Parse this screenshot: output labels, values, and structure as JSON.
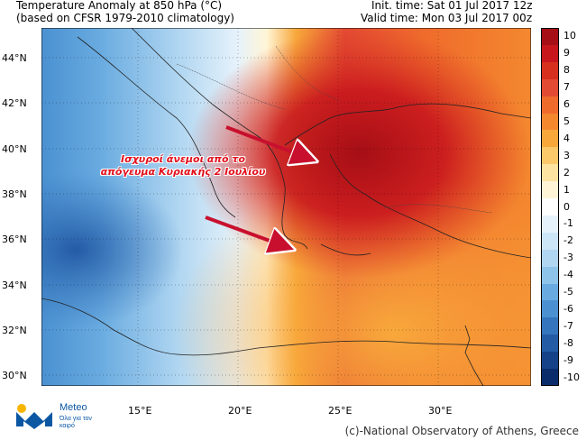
{
  "header": {
    "title": "Temperature Anomaly at 850 hPa (°C)",
    "subtitle": "(based on CFSR 1979-2010 climatology)",
    "init_time": "Init. time: Sat 01 Jul 2017 12z",
    "valid_time": "Valid time: Mon 03 Jul 2017 00z"
  },
  "map": {
    "lat_labels": [
      "44°N",
      "42°N",
      "40°N",
      "38°N",
      "36°N",
      "34°N",
      "32°N",
      "30°N"
    ],
    "lon_labels": [
      "15°E",
      "20°E",
      "25°E",
      "30°E"
    ],
    "annotation_line1": "Ισχυροί άνεμοι από το",
    "annotation_line2": "απόγευμα Κυριακής 2 Ιουλίου",
    "arrow_color": "#c8102e"
  },
  "colorbar": {
    "labels": [
      "10",
      "9",
      "8",
      "7",
      "6",
      "5",
      "4",
      "3",
      "2",
      "1",
      "0",
      "-1",
      "-2",
      "-3",
      "-4",
      "-5",
      "-6",
      "-7",
      "-8",
      "-9",
      "-10"
    ],
    "colors": [
      "#a50f15",
      "#c8161d",
      "#d7301f",
      "#e34a33",
      "#ef6b2c",
      "#f4882f",
      "#f8a83b",
      "#fbc96a",
      "#fde3a2",
      "#fff5d6",
      "#ffffff",
      "#e6f2fb",
      "#cde6f7",
      "#b0d6f1",
      "#8ec3ea",
      "#69abe0",
      "#4b91d1",
      "#3575bd",
      "#245ba5",
      "#16428a",
      "#0b2c6a"
    ]
  },
  "logo": {
    "name": "Meteo",
    "tagline": "Όλα για τον καιρό"
  },
  "credit": "(c)-National Observatory of Athens, Greece"
}
